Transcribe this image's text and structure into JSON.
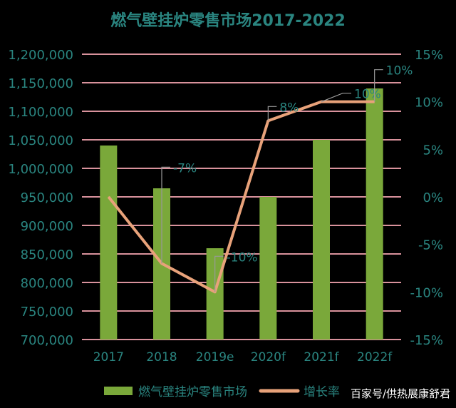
{
  "chart_data": {
    "type": "bar+line",
    "title": "燃气壁挂炉零售市场2017-2022",
    "categories": [
      "2017",
      "2018",
      "2019e",
      "2020f",
      "2021f",
      "2022f"
    ],
    "series": [
      {
        "name": "燃气壁挂炉零售市场",
        "type": "bar",
        "axis": "left",
        "color": "#7aa83a",
        "values": [
          1040000,
          965000,
          860000,
          950000,
          1050000,
          1140000
        ]
      },
      {
        "name": "增长率",
        "type": "line",
        "axis": "right",
        "color": "#e8a27a",
        "values": [
          0,
          -7,
          -10,
          8,
          10,
          10
        ],
        "data_labels": [
          "",
          "-7%",
          "-10%",
          "8%",
          "10%",
          "10%"
        ]
      }
    ],
    "y_left": {
      "min": 700000,
      "max": 1200000,
      "step": 50000,
      "tick_labels": [
        "700,000",
        "750,000",
        "800,000",
        "850,000",
        "900,000",
        "950,000",
        "1,000,000",
        "1,050,000",
        "1,100,000",
        "1,150,000",
        "1,200,000"
      ]
    },
    "y_right": {
      "min": -15,
      "max": 15,
      "step": 5,
      "tick_labels": [
        "-15%",
        "-10%",
        "-5%",
        "0%",
        "5%",
        "10%",
        "15%"
      ]
    },
    "grid": true,
    "legend": "bottom",
    "colors": {
      "text": "#2a8580",
      "grid": "#d9929c",
      "background": "#000000"
    }
  },
  "watermark": "百家号/供热展康舒君"
}
